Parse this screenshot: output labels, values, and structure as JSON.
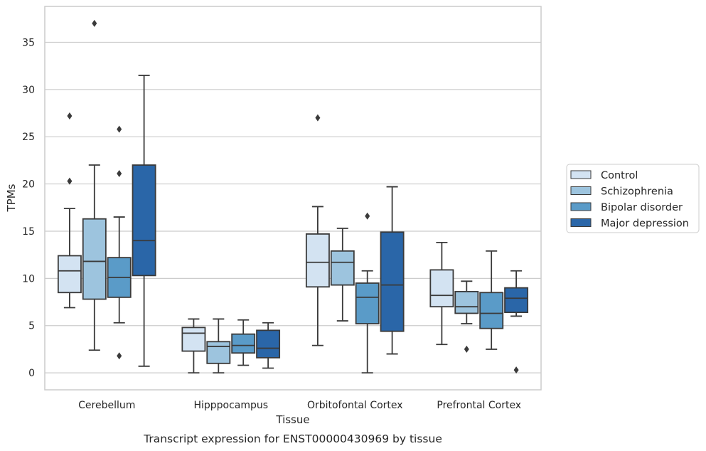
{
  "chart_data": {
    "type": "box",
    "title": "",
    "caption": "Transcript expression for ENST00000430969 by tissue",
    "xlabel": "Tissue",
    "ylabel": "TPMs",
    "ylim": [
      -1.8,
      38.8
    ],
    "yticks": [
      0,
      5,
      10,
      15,
      20,
      25,
      30,
      35
    ],
    "grid": "horizontal",
    "legend_position": "right",
    "categories": [
      "Cerebellum",
      "Hipppocampus",
      "Orbitofontal Cortex",
      "Prefrontal Cortex"
    ],
    "series": [
      {
        "name": "Control",
        "color": "#d3e3f2",
        "boxes": [
          {
            "whislo": 6.9,
            "q1": 8.5,
            "med": 10.8,
            "q3": 12.4,
            "whishi": 17.4,
            "fliers": [
              20.3,
              27.2
            ]
          },
          {
            "whislo": 0.0,
            "q1": 2.3,
            "med": 4.2,
            "q3": 4.8,
            "whishi": 5.7,
            "fliers": []
          },
          {
            "whislo": 2.9,
            "q1": 9.1,
            "med": 11.7,
            "q3": 14.7,
            "whishi": 17.6,
            "fliers": [
              27.0
            ]
          },
          {
            "whislo": 3.0,
            "q1": 7.0,
            "med": 8.2,
            "q3": 10.9,
            "whishi": 13.8,
            "fliers": []
          }
        ]
      },
      {
        "name": "Schizophrenia",
        "color": "#9dc4de",
        "boxes": [
          {
            "whislo": 2.4,
            "q1": 7.8,
            "med": 11.8,
            "q3": 16.3,
            "whishi": 22.0,
            "fliers": [
              37.0
            ]
          },
          {
            "whislo": 0.0,
            "q1": 1.0,
            "med": 2.8,
            "q3": 3.3,
            "whishi": 5.7,
            "fliers": []
          },
          {
            "whislo": 5.5,
            "q1": 9.3,
            "med": 11.7,
            "q3": 12.9,
            "whishi": 15.3,
            "fliers": []
          },
          {
            "whislo": 5.2,
            "q1": 6.3,
            "med": 7.0,
            "q3": 8.6,
            "whishi": 9.7,
            "fliers": [
              2.5
            ]
          }
        ]
      },
      {
        "name": "Bipolar disorder",
        "color": "#5a9bc8",
        "boxes": [
          {
            "whislo": 5.3,
            "q1": 8.0,
            "med": 10.1,
            "q3": 12.2,
            "whishi": 16.5,
            "fliers": [
              1.8,
              21.1,
              25.8
            ]
          },
          {
            "whislo": 0.8,
            "q1": 2.1,
            "med": 2.9,
            "q3": 4.1,
            "whishi": 5.6,
            "fliers": []
          },
          {
            "whislo": 0.0,
            "q1": 5.2,
            "med": 8.0,
            "q3": 9.5,
            "whishi": 10.8,
            "fliers": [
              16.6
            ]
          },
          {
            "whislo": 2.5,
            "q1": 4.7,
            "med": 6.3,
            "q3": 8.5,
            "whishi": 12.9,
            "fliers": []
          }
        ]
      },
      {
        "name": "Major depression",
        "color": "#2a66a8",
        "boxes": [
          {
            "whislo": 0.7,
            "q1": 10.3,
            "med": 14.0,
            "q3": 22.0,
            "whishi": 31.5,
            "fliers": []
          },
          {
            "whislo": 0.5,
            "q1": 1.6,
            "med": 2.6,
            "q3": 4.5,
            "whishi": 5.3,
            "fliers": []
          },
          {
            "whislo": 2.0,
            "q1": 4.4,
            "med": 9.3,
            "q3": 14.9,
            "whishi": 19.7,
            "fliers": []
          },
          {
            "whislo": 6.0,
            "q1": 6.4,
            "med": 7.9,
            "q3": 9.0,
            "whishi": 10.8,
            "fliers": [
              0.3
            ]
          }
        ]
      }
    ],
    "colors": {
      "line": "#3a3a3a",
      "grid": "#cccccc",
      "frame": "#cccccc"
    }
  }
}
